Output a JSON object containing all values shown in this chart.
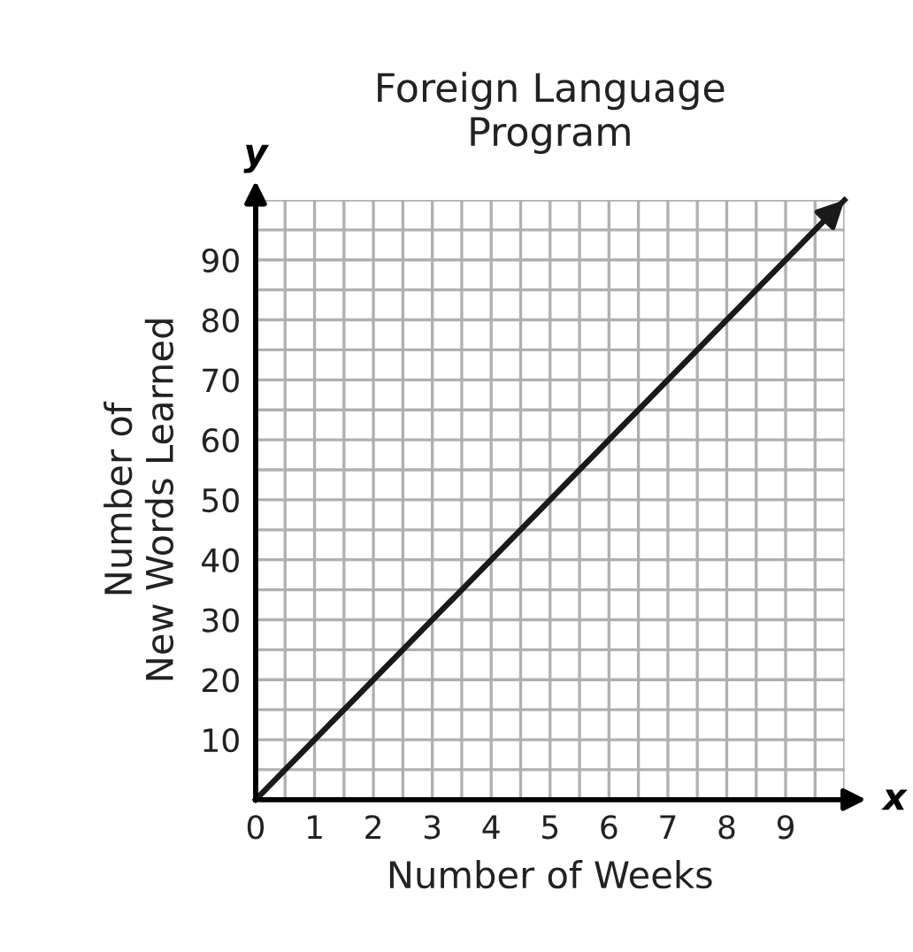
{
  "chart_data": {
    "type": "line",
    "title": "Foreign Language\nProgram",
    "xlabel": "Number of Weeks",
    "ylabel": "Number of\nNew Words Learned",
    "annotations": [
      "x",
      "y"
    ],
    "x": [
      0,
      10
    ],
    "series": [
      {
        "color": "#1a1a1a",
        "values": [
          0,
          100
        ]
      }
    ],
    "xlim": [
      0,
      10
    ],
    "ylim": [
      0,
      100
    ],
    "xticks": [
      0,
      {
        "value": 0.5,
        "label": null
      },
      1,
      {
        "value": 1.5,
        "label": null
      },
      2,
      {
        "value": 2.5,
        "label": null
      },
      3,
      {
        "value": 3.5,
        "label": null
      },
      4,
      {
        "value": 4.5,
        "label": null
      },
      5,
      {
        "value": 5.5,
        "label": null
      },
      6,
      {
        "value": 6.5,
        "label": null
      },
      7,
      {
        "value": 7.5,
        "label": null
      },
      8,
      {
        "value": 8.5,
        "label": null
      },
      9,
      {
        "value": 9.5,
        "label": null
      },
      {
        "value": 10,
        "label": null
      }
    ],
    "yticks": [
      {
        "value": 5,
        "label": null
      },
      10,
      {
        "value": 15,
        "label": null
      },
      20,
      {
        "value": 25,
        "label": null
      },
      30,
      {
        "value": 35,
        "label": null
      },
      40,
      {
        "value": 45,
        "label": null
      },
      50,
      {
        "value": 55,
        "label": null
      },
      60,
      {
        "value": 65,
        "label": null
      },
      70,
      {
        "value": 75,
        "label": null
      },
      80,
      {
        "value": 85,
        "label": null
      },
      90,
      {
        "value": 95,
        "label": null
      },
      {
        "value": 100,
        "label": null
      }
    ],
    "grid": true,
    "marker": "none",
    "line_style": "solid"
  }
}
